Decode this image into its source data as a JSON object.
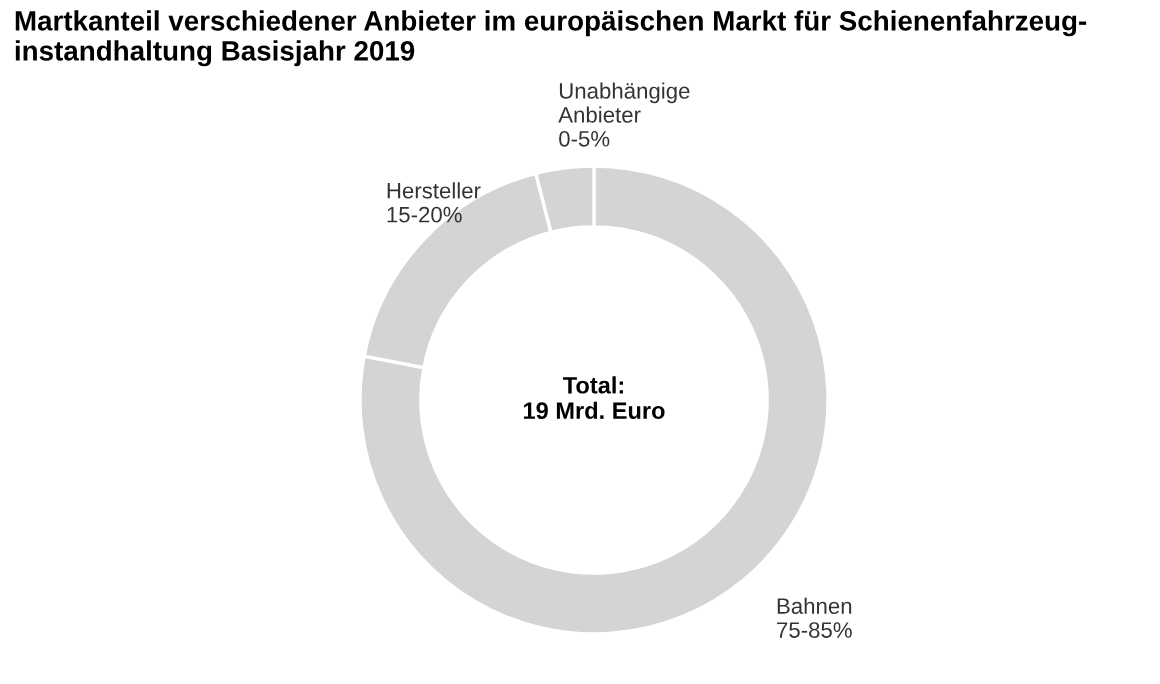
{
  "chart_data": {
    "type": "donut",
    "title": "Martkanteil verschiedener Anbieter im europäischen Markt für Schienenfahrzeug-\ninstandhaltung Basisjahr 2019",
    "categories": [
      "Bahnen\n75-85%",
      "Hersteller\n15-20%",
      "Unabhängige\nAnbieter\n0-5%"
    ],
    "values": [
      78,
      18,
      4
    ],
    "colors": [
      "#d4d4d4",
      "#d4d4d4",
      "#d4d4d4"
    ],
    "annotations": [
      "Total:\n19 Mrd. Euro"
    ]
  }
}
